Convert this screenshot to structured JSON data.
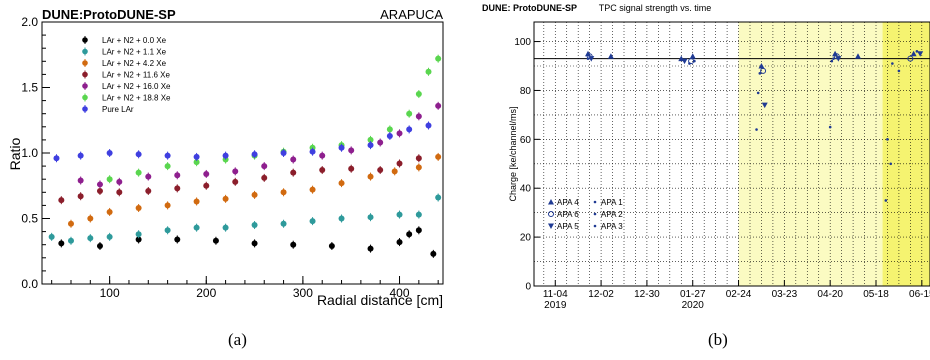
{
  "captions": {
    "a": "(a)",
    "b": "(b)"
  },
  "chart_data": [
    {
      "id": "a",
      "type": "scatter",
      "title": "DUNE:ProtoDUNE-SP",
      "subtitle": "ARAPUCA",
      "xlabel": "Radial distance [cm]",
      "ylabel": "Ratio",
      "xlim": [
        30,
        445
      ],
      "ylim": [
        0,
        2
      ],
      "xticks": [
        100,
        200,
        300,
        400
      ],
      "yticks": [
        0.0,
        0.5,
        1.0,
        1.5,
        2.0
      ],
      "ytick_labels": [
        "0.0",
        "0.5",
        "1.0",
        "1.5",
        "2.0"
      ],
      "grid": false,
      "legend_position": "top-left",
      "series": [
        {
          "name": "LAr + N2 + 0.0 Xe",
          "color": "#000000",
          "x": [
            50,
            90,
            130,
            170,
            210,
            250,
            290,
            330,
            370,
            400,
            410,
            420,
            435
          ],
          "y": [
            0.31,
            0.29,
            0.34,
            0.34,
            0.33,
            0.31,
            0.3,
            0.29,
            0.27,
            0.32,
            0.38,
            0.41,
            0.23
          ]
        },
        {
          "name": "LAr + N2 + 1.1 Xe",
          "color": "#2e9a9b",
          "x": [
            40,
            60,
            80,
            100,
            130,
            160,
            190,
            220,
            250,
            280,
            310,
            340,
            370,
            400,
            420,
            440
          ],
          "y": [
            0.36,
            0.33,
            0.35,
            0.36,
            0.38,
            0.41,
            0.43,
            0.43,
            0.45,
            0.46,
            0.48,
            0.5,
            0.51,
            0.53,
            0.53,
            0.66
          ]
        },
        {
          "name": "LAr + N2 + 4.2 Xe",
          "color": "#d16a10",
          "x": [
            60,
            80,
            100,
            130,
            160,
            190,
            220,
            250,
            280,
            310,
            340,
            370,
            395,
            420,
            440
          ],
          "y": [
            0.46,
            0.5,
            0.55,
            0.58,
            0.6,
            0.63,
            0.65,
            0.68,
            0.7,
            0.72,
            0.77,
            0.82,
            0.86,
            0.89,
            0.97
          ]
        },
        {
          "name": "LAr + N2 + 11.6 Xe",
          "color": "#8b1e2b",
          "x": [
            50,
            70,
            90,
            110,
            140,
            170,
            200,
            230,
            260,
            290,
            320,
            350,
            380,
            400,
            420
          ],
          "y": [
            0.64,
            0.67,
            0.71,
            0.7,
            0.71,
            0.73,
            0.75,
            0.78,
            0.81,
            0.85,
            0.87,
            0.88,
            0.87,
            0.92,
            0.96
          ]
        },
        {
          "name": "LAr + N2 + 16.0 Xe",
          "color": "#8e1f8e",
          "x": [
            70,
            90,
            110,
            140,
            170,
            200,
            230,
            260,
            290,
            320,
            350,
            380,
            400,
            420,
            440
          ],
          "y": [
            0.79,
            0.76,
            0.78,
            0.82,
            0.83,
            0.84,
            0.86,
            0.9,
            0.95,
            0.98,
            1.02,
            1.08,
            1.15,
            1.28,
            1.36
          ]
        },
        {
          "name": "LAr + N2 + 18.8 Xe",
          "color": "#5ad64f",
          "x": [
            100,
            130,
            160,
            190,
            220,
            250,
            280,
            310,
            340,
            370,
            390,
            410,
            420,
            430,
            440
          ],
          "y": [
            0.8,
            0.85,
            0.9,
            0.93,
            0.95,
            0.98,
            1.01,
            1.04,
            1.06,
            1.1,
            1.18,
            1.3,
            1.45,
            1.62,
            1.72
          ]
        },
        {
          "name": "Pure LAr",
          "color": "#3f3fe0",
          "x": [
            45,
            70,
            100,
            130,
            160,
            190,
            220,
            250,
            280,
            310,
            340,
            370,
            390,
            410,
            430
          ],
          "y": [
            0.96,
            0.98,
            1.0,
            0.99,
            0.98,
            0.97,
            0.98,
            0.99,
            1.0,
            1.01,
            1.04,
            1.06,
            1.13,
            1.18,
            1.21
          ]
        }
      ]
    },
    {
      "id": "b",
      "type": "scatter",
      "title": "TPC signal strength vs. time",
      "label": "DUNE: ProtoDUNE-SP",
      "xlabel": "",
      "ylabel": "Charge [ke/channel/ms]",
      "xlim": [
        "2019-10-22",
        "2020-06-20"
      ],
      "ylim": [
        0,
        108
      ],
      "xticks": [
        "2019-11-04",
        "2019-12-02",
        "2019-12-30",
        "2020-01-27",
        "2020-02-24",
        "2020-03-23",
        "2020-04-20",
        "2020-05-18",
        "2020-06-15"
      ],
      "xtick_labels": [
        "11-04",
        "12-02",
        "12-30",
        "01-27",
        "02-24",
        "03-23",
        "04-20",
        "05-18",
        "06-15"
      ],
      "year_labels": [
        {
          "date": "2019-11-04",
          "text": "2019"
        },
        {
          "date": "2020-01-27",
          "text": "2020"
        }
      ],
      "yticks": [
        0,
        20,
        40,
        60,
        80,
        100
      ],
      "grid": true,
      "reference_line": 93,
      "highlight_regions": [
        {
          "start": "2020-02-24",
          "end": "2020-05-22",
          "color": "#fbfbc2"
        },
        {
          "start": "2020-05-22",
          "end": "2020-06-20",
          "color": "#f5f370"
        }
      ],
      "legend_position": "bottom-left",
      "series": [
        {
          "name": "APA 4",
          "marker": "triangle-up",
          "x": [
            "2019-11-24",
            "2019-12-08",
            "2020-01-20",
            "2020-01-27",
            "2020-03-09",
            "2020-04-23",
            "2020-05-07",
            "2020-06-10"
          ],
          "y": [
            95,
            94,
            93,
            94,
            90,
            95,
            94,
            95
          ]
        },
        {
          "name": "APA 1",
          "marker": "dot",
          "x": [
            "2019-11-24",
            "2020-01-25",
            "2020-03-08",
            "2020-04-22",
            "2020-05-28",
            "2020-06-12"
          ],
          "y": [
            93,
            91,
            87,
            93,
            91,
            96
          ]
        },
        {
          "name": "APA 6",
          "marker": "circle",
          "x": [
            "2019-11-25",
            "2020-01-26",
            "2020-03-10",
            "2020-04-24",
            "2020-06-08"
          ],
          "y": [
            94,
            92,
            88,
            94,
            93
          ]
        },
        {
          "name": "APA 2",
          "marker": "dot",
          "x": [
            "2020-01-28",
            "2020-03-07",
            "2020-04-21",
            "2020-05-25",
            "2020-06-01"
          ],
          "y": [
            92,
            79,
            92,
            60,
            88
          ]
        },
        {
          "name": "APA 5",
          "marker": "triangle-down",
          "x": [
            "2019-11-26",
            "2020-01-22",
            "2020-03-11",
            "2020-04-25",
            "2020-06-14"
          ],
          "y": [
            93,
            92,
            74,
            93,
            95
          ]
        },
        {
          "name": "APA 3",
          "marker": "dot",
          "x": [
            "2020-03-06",
            "2020-04-20",
            "2020-05-24",
            "2020-05-27"
          ],
          "y": [
            64,
            65,
            35,
            50
          ]
        }
      ]
    }
  ]
}
